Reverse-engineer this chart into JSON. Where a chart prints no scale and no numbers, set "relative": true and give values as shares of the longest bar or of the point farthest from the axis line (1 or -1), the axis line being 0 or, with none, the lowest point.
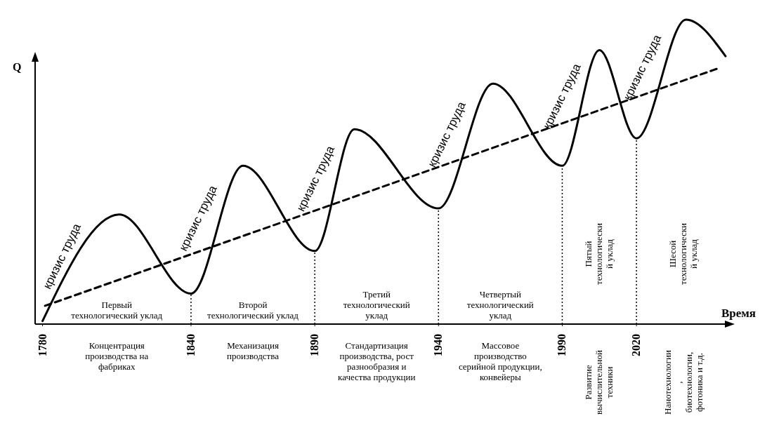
{
  "chart_data": {
    "type": "line",
    "relative": true,
    "xlabel": "Время",
    "ylabel": "Q",
    "xlim": [
      1777,
      2058
    ],
    "xticks": [
      1780,
      1840,
      1890,
      1940,
      1990,
      2020
    ],
    "series": [
      {
        "color": "#000000",
        "line_style": "solid",
        "x": [
          1780,
          1811,
          1840,
          1861,
          1890,
          1906,
          1940,
          1962,
          1990,
          2005,
          2020,
          2040,
          2056
        ],
        "values": [
          0.01,
          0.36,
          0.1,
          0.52,
          0.24,
          0.64,
          0.38,
          0.79,
          0.52,
          0.9,
          0.61,
          1.0,
          0.88
        ]
      },
      {
        "color": "#000000",
        "line_style": "dashed",
        "x": [
          1781,
          2053
        ],
        "values": [
          0.06,
          0.84
        ]
      }
    ],
    "ref_lines": [
      {
        "axis": "x",
        "value": 1840,
        "line_style": "dotted"
      },
      {
        "axis": "x",
        "value": 1890,
        "line_style": "dotted"
      },
      {
        "axis": "x",
        "value": 1940,
        "line_style": "dotted"
      },
      {
        "axis": "x",
        "value": 1990,
        "line_style": "dotted"
      },
      {
        "axis": "x",
        "value": 2020,
        "line_style": "dotted"
      }
    ],
    "annotations": [
      "кризис труда",
      "кризис труда",
      "кризис труда",
      "кризис труда",
      "кризис труда",
      "кризис труда",
      "Первый\nтехнологический уклад",
      "Второй\nтехнологический уклад",
      "Третий\nтехнологический\nуклад",
      "Четвертый\nтехнологический\nуклад",
      "Пятый\nтехнологически\nй уклад",
      "Шесой\nтехнологически\nй уклад",
      "Концентрация\nпроизводства на\nфабриках",
      "Механизация\nпроизводства",
      "Стандартизация\nпроизводства, рост\nразнообразия и\nкачества продукции",
      "Массовое\nпроизводство\nсерийной продукции,\nконвейеры",
      "Развитие\nвычислительной\nтехники",
      "Нанотехнологии\n,\nбиотехнологии,\nфотоника и т.д."
    ]
  }
}
